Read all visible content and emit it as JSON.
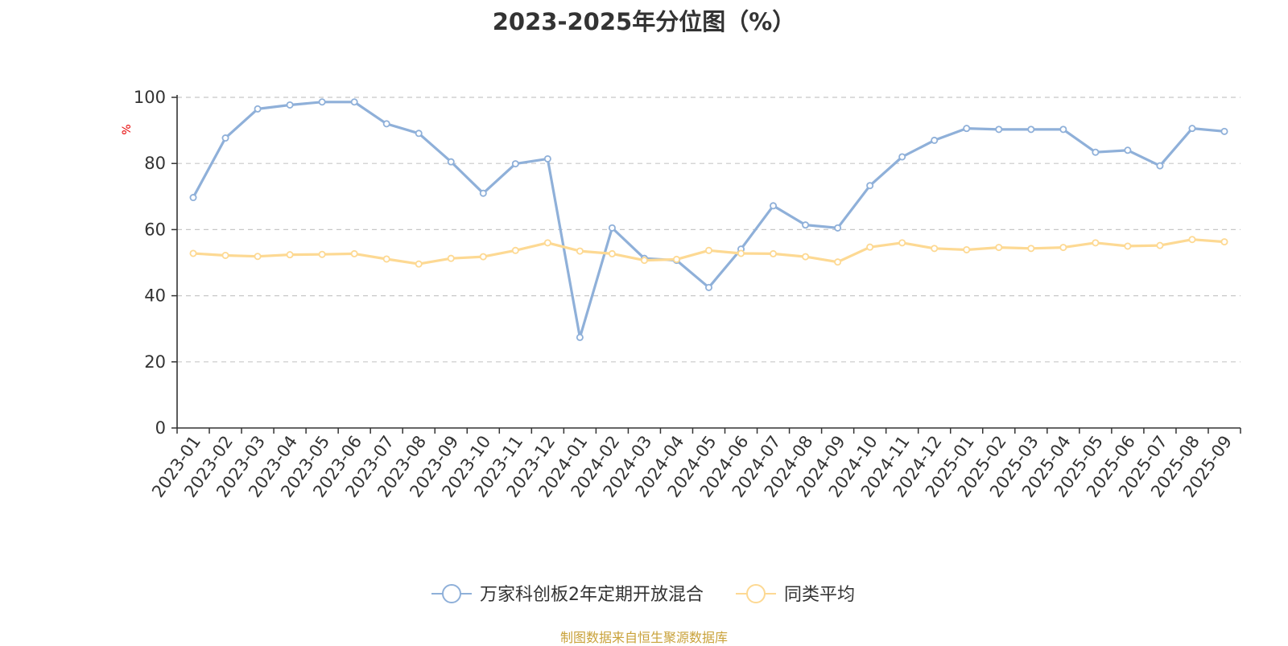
{
  "chart_data": {
    "type": "line",
    "title": "2023-2025年分位图（%）",
    "ylabel": "%",
    "ylim": [
      0,
      100
    ],
    "yticks": [
      0,
      20,
      40,
      60,
      80,
      100
    ],
    "grid": true,
    "legend_position": "bottom-center",
    "x": [
      "2023-01",
      "2023-02",
      "2023-03",
      "2023-04",
      "2023-05",
      "2023-06",
      "2023-07",
      "2023-08",
      "2023-09",
      "2023-10",
      "2023-11",
      "2023-12",
      "2024-01",
      "2024-02",
      "2024-03",
      "2024-04",
      "2024-05",
      "2024-06",
      "2024-07",
      "2024-08",
      "2024-09",
      "2024-10",
      "2024-11",
      "2024-12",
      "2025-01",
      "2025-02",
      "2025-03",
      "2025-04",
      "2025-05",
      "2025-06",
      "2025-07",
      "2025-08",
      "2025-09"
    ],
    "series": [
      {
        "name": "万家科创板2年定期开放混合",
        "color": "#8fb0d9",
        "values": [
          69.7,
          87.7,
          96.5,
          97.7,
          98.6,
          98.6,
          92.0,
          89.1,
          80.5,
          71.0,
          79.9,
          81.4,
          27.4,
          60.5,
          51.3,
          50.7,
          42.5,
          54.1,
          67.2,
          61.4,
          60.5,
          73.3,
          82.0,
          87.0,
          90.6,
          90.3,
          90.3,
          90.3,
          83.4,
          84.0,
          79.3,
          90.6,
          89.7
        ]
      },
      {
        "name": "同类平均",
        "color": "#fdd993",
        "values": [
          52.8,
          52.2,
          51.9,
          52.4,
          52.5,
          52.7,
          51.1,
          49.6,
          51.3,
          51.8,
          53.7,
          56.0,
          53.5,
          52.7,
          50.7,
          51.0,
          53.7,
          52.8,
          52.7,
          51.8,
          50.2,
          54.7,
          56.0,
          54.3,
          53.9,
          54.6,
          54.3,
          54.6,
          56.0,
          55.0,
          55.2,
          57.0,
          56.3
        ]
      }
    ]
  },
  "colors": {
    "axis": "#333333",
    "grid": "#c8c8c8",
    "tick_text": "#333333",
    "ylabel": "#e60000",
    "source": "#c9a23a"
  },
  "source_note": "制图数据来自恒生聚源数据库"
}
